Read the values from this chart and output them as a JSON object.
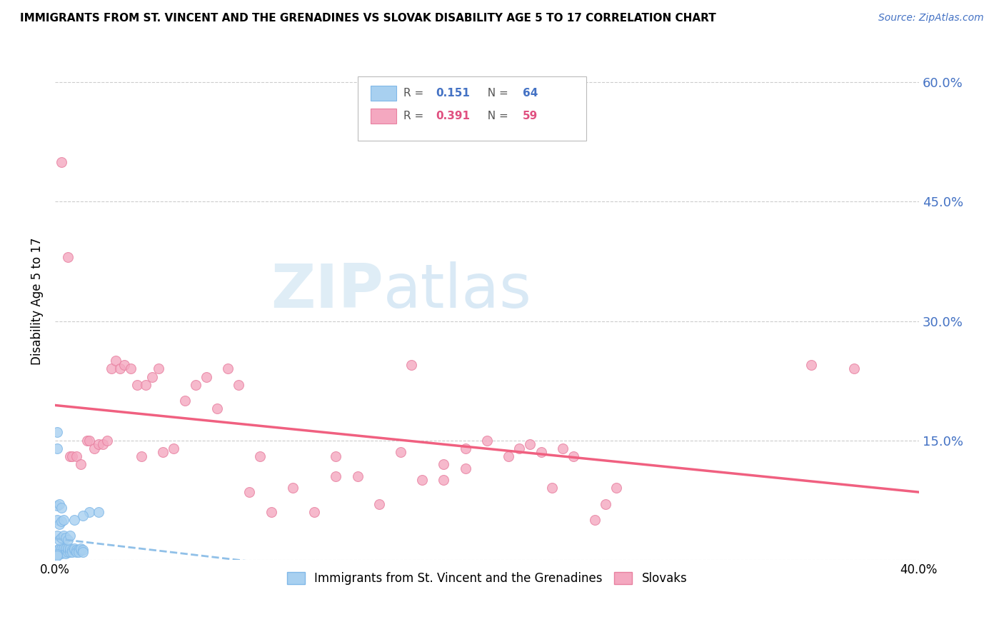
{
  "title": "IMMIGRANTS FROM ST. VINCENT AND THE GRENADINES VS SLOVAK DISABILITY AGE 5 TO 17 CORRELATION CHART",
  "source": "Source: ZipAtlas.com",
  "ylabel": "Disability Age 5 to 17",
  "xlim": [
    0.0,
    0.4
  ],
  "ylim": [
    0.0,
    0.65
  ],
  "yticks": [
    0.0,
    0.15,
    0.3,
    0.45,
    0.6
  ],
  "ytick_labels": [
    "",
    "15.0%",
    "30.0%",
    "45.0%",
    "60.0%"
  ],
  "xticks": [
    0.0,
    0.1,
    0.2,
    0.3,
    0.4
  ],
  "xtick_labels": [
    "0.0%",
    "",
    "",
    "",
    "40.0%"
  ],
  "blue_R": 0.151,
  "blue_N": 64,
  "pink_R": 0.391,
  "pink_N": 59,
  "blue_color": "#a8d0f0",
  "pink_color": "#f4a8c0",
  "blue_edge": "#80b8e8",
  "pink_edge": "#e880a0",
  "line_blue_color": "#90c0e8",
  "line_pink_color": "#f06080",
  "legend_label_blue": "Immigrants from St. Vincent and the Grenadines",
  "legend_label_pink": "Slovaks",
  "blue_scatter_x": [
    0.0005,
    0.001,
    0.001,
    0.001,
    0.0015,
    0.0015,
    0.002,
    0.002,
    0.002,
    0.002,
    0.0025,
    0.003,
    0.003,
    0.003,
    0.003,
    0.004,
    0.004,
    0.004,
    0.005,
    0.005,
    0.005,
    0.005,
    0.006,
    0.006,
    0.006,
    0.007,
    0.007,
    0.007,
    0.008,
    0.008,
    0.009,
    0.009,
    0.01,
    0.01,
    0.011,
    0.011,
    0.012,
    0.012,
    0.013,
    0.013,
    0.001,
    0.002,
    0.003,
    0.004,
    0.005,
    0.006,
    0.007,
    0.001,
    0.002,
    0.003,
    0.004,
    0.001,
    0.002,
    0.003,
    0.001,
    0.001,
    0.016,
    0.02,
    0.013,
    0.009,
    0.001,
    0.001,
    0.001,
    0.001
  ],
  "blue_scatter_y": [
    0.01,
    0.01,
    0.012,
    0.008,
    0.01,
    0.012,
    0.01,
    0.012,
    0.008,
    0.014,
    0.01,
    0.01,
    0.012,
    0.014,
    0.008,
    0.012,
    0.01,
    0.014,
    0.012,
    0.01,
    0.014,
    0.008,
    0.012,
    0.01,
    0.014,
    0.012,
    0.01,
    0.014,
    0.012,
    0.01,
    0.012,
    0.014,
    0.012,
    0.01,
    0.012,
    0.01,
    0.012,
    0.014,
    0.012,
    0.01,
    0.03,
    0.025,
    0.028,
    0.03,
    0.028,
    0.025,
    0.03,
    0.05,
    0.045,
    0.048,
    0.05,
    0.068,
    0.07,
    0.065,
    0.16,
    0.14,
    0.06,
    0.06,
    0.055,
    0.05,
    0.005,
    0.006,
    0.007,
    0.005
  ],
  "pink_scatter_x": [
    0.003,
    0.006,
    0.007,
    0.008,
    0.01,
    0.012,
    0.015,
    0.016,
    0.018,
    0.02,
    0.022,
    0.024,
    0.026,
    0.028,
    0.03,
    0.032,
    0.035,
    0.038,
    0.04,
    0.042,
    0.045,
    0.048,
    0.05,
    0.055,
    0.06,
    0.065,
    0.07,
    0.075,
    0.08,
    0.085,
    0.09,
    0.095,
    0.1,
    0.11,
    0.12,
    0.13,
    0.14,
    0.15,
    0.16,
    0.17,
    0.18,
    0.19,
    0.2,
    0.21,
    0.215,
    0.22,
    0.225,
    0.23,
    0.235,
    0.24,
    0.25,
    0.255,
    0.26,
    0.18,
    0.19,
    0.35,
    0.37,
    0.13,
    0.165
  ],
  "pink_scatter_y": [
    0.5,
    0.38,
    0.13,
    0.13,
    0.13,
    0.12,
    0.15,
    0.15,
    0.14,
    0.145,
    0.145,
    0.15,
    0.24,
    0.25,
    0.24,
    0.245,
    0.24,
    0.22,
    0.13,
    0.22,
    0.23,
    0.24,
    0.135,
    0.14,
    0.2,
    0.22,
    0.23,
    0.19,
    0.24,
    0.22,
    0.085,
    0.13,
    0.06,
    0.09,
    0.06,
    0.13,
    0.105,
    0.07,
    0.135,
    0.1,
    0.12,
    0.14,
    0.15,
    0.13,
    0.14,
    0.145,
    0.135,
    0.09,
    0.14,
    0.13,
    0.05,
    0.07,
    0.09,
    0.1,
    0.115,
    0.245,
    0.24,
    0.105,
    0.245
  ]
}
